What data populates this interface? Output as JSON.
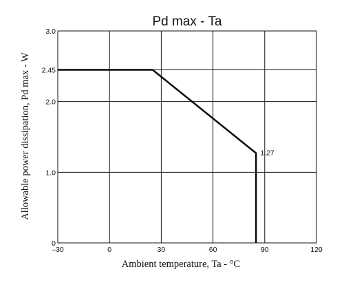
{
  "chart_data": {
    "type": "line",
    "title": "Pd max  -  Ta",
    "xlabel": "Ambient temperature, Ta - °C",
    "ylabel": "Allowable power dissipation, Pd max - W",
    "xlim": [
      -30,
      120
    ],
    "ylim": [
      0,
      3.0
    ],
    "xticks": [
      -30,
      0,
      30,
      60,
      90,
      120
    ],
    "xtick_labels": [
      "–30",
      "0",
      "30",
      "60",
      "90",
      "120"
    ],
    "yticks": [
      0,
      1.0,
      2.0,
      2.45,
      3.0
    ],
    "ytick_labels": [
      "0",
      "1.0",
      "2.0",
      "2.45",
      "3.0"
    ],
    "grid": true,
    "series": [
      {
        "x": [
          -30,
          25,
          85,
          85
        ],
        "y": [
          2.45,
          2.45,
          1.27,
          0
        ]
      }
    ],
    "annotations": [
      {
        "text": "1.27",
        "x": 85,
        "y": 1.27
      }
    ],
    "colors": {
      "line": "#111111",
      "grid": "#111111",
      "axis": "#111111"
    }
  }
}
